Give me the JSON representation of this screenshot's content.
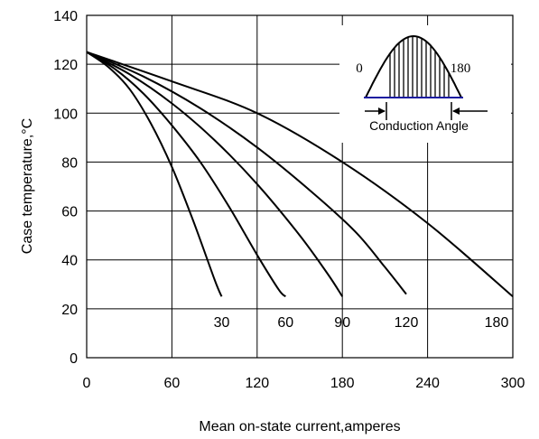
{
  "chart_data": {
    "type": "line",
    "title": "",
    "xlabel": "Mean on-state current,amperes",
    "ylabel": "Case temperature,°C",
    "xlim": [
      0,
      300
    ],
    "ylim": [
      0,
      140
    ],
    "x_ticks": [
      "0",
      "60",
      "120",
      "180",
      "240",
      "300"
    ],
    "y_ticks": [
      "0",
      "20",
      "40",
      "60",
      "80",
      "100",
      "120",
      "140"
    ],
    "grid": true,
    "series": [
      {
        "name": "30",
        "points": [
          [
            0,
            125
          ],
          [
            15,
            119
          ],
          [
            30,
            110
          ],
          [
            45,
            96
          ],
          [
            60,
            78
          ],
          [
            75,
            56
          ],
          [
            90,
            32
          ],
          [
            95,
            25
          ]
        ]
      },
      {
        "name": "60",
        "points": [
          [
            0,
            125
          ],
          [
            20,
            118
          ],
          [
            40,
            108
          ],
          [
            60,
            95
          ],
          [
            80,
            80
          ],
          [
            100,
            62
          ],
          [
            120,
            42
          ],
          [
            135,
            28
          ],
          [
            140,
            25
          ]
        ]
      },
      {
        "name": "90",
        "points": [
          [
            0,
            125
          ],
          [
            30,
            116
          ],
          [
            60,
            104
          ],
          [
            90,
            89
          ],
          [
            120,
            71
          ],
          [
            150,
            50
          ],
          [
            170,
            34
          ],
          [
            180,
            25
          ]
        ]
      },
      {
        "name": "120",
        "points": [
          [
            0,
            125
          ],
          [
            40,
            115
          ],
          [
            80,
            102
          ],
          [
            120,
            86
          ],
          [
            160,
            67
          ],
          [
            190,
            51
          ],
          [
            210,
            37
          ],
          [
            225,
            26
          ]
        ]
      },
      {
        "name": "180",
        "points": [
          [
            0,
            125
          ],
          [
            60,
            113
          ],
          [
            120,
            100
          ],
          [
            180,
            80
          ],
          [
            240,
            55
          ],
          [
            300,
            25
          ]
        ]
      }
    ],
    "inset": {
      "start_label": "0",
      "end_label": "180",
      "caption": "Conduction Angle"
    }
  }
}
